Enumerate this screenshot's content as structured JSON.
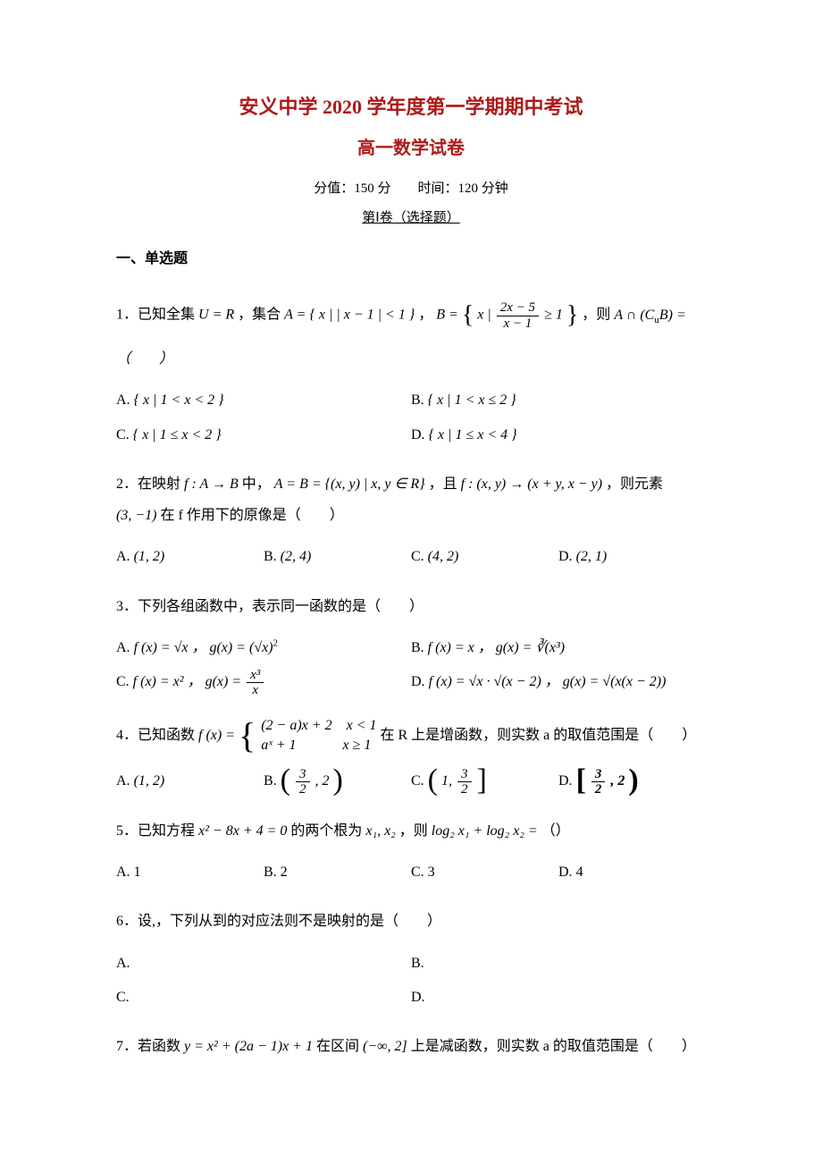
{
  "colors": {
    "accent": "#ad1a1a",
    "text": "#000000",
    "background": "#ffffff"
  },
  "title_main": "安义中学 2020 学年度第一学期期中考试",
  "title_sub": "高一数学试卷",
  "meta": "分值：150 分　　时间：120 分钟",
  "part_label": "第Ⅰ卷（选择题）",
  "section1": "一、单选题",
  "q1": {
    "stem_a": "1．已知全集 ",
    "stem_u": "U = R",
    "stem_b": " ，集合 ",
    "stem_A": "A = { x | | x − 1 | < 1 }",
    "stem_c": "， ",
    "stem_Bpre": "B = ",
    "frac_num": "2x − 5",
    "frac_den": "x − 1",
    "stem_Bpost": " ≥ 1",
    "stem_d": "，则 ",
    "stem_e": "A ∩ (C",
    "stem_sub": "u",
    "stem_f": "B) = （　　）",
    "A": "{ x | 1 < x < 2 }",
    "B": "{ x | 1 < x ≤ 2 }",
    "C": "{ x | 1 ≤ x < 2 }",
    "D": "{ x | 1 ≤ x < 4 }"
  },
  "q2": {
    "stem_a": "2．在映射 ",
    "map": "f : A → B",
    "stem_b": " 中， ",
    "AB": "A = B = {(x, y) | x, y ∈ R}",
    "stem_c": "，且 ",
    "rule": "f : (x, y) → (x + y, x − y)",
    "stem_d": " ，则元素",
    "elem": "(3, −1)",
    "stem_e": " 在 f 作用下的原像是（　　）",
    "A": "(1, 2)",
    "B": "(2, 4)",
    "C": "(4, 2)",
    "D": "(2, 1)"
  },
  "q3": {
    "stem": "3．下列各组函数中，表示同一函数的是（　　）",
    "A1": "f (x) = √x ， g(x) = (√x)",
    "A1sup": "2",
    "B1": "f (x) = x ， g(x) = ∛(x³)",
    "C1a": "f (x) = x² ， g(x) = ",
    "C1num": "x³",
    "C1den": "x",
    "D1": "f (x) = √x · √(x − 2) ， g(x) = √(x(x − 2))"
  },
  "q4": {
    "stem_a": "4．已知函数 ",
    "fx": "f (x) =",
    "row1": "(2 − a)x + 2　x < 1",
    "row2": "aˣ + 1　　　 x ≥ 1",
    "stem_b": " 在 R 上是增函数，则实数 a 的取值范围是（　　）",
    "A": "(1, 2)",
    "Bnum": "3",
    "Bden": "2",
    "Bpost": ", 2",
    "Cpre": "1, ",
    "Cnum": "3",
    "Cden": "2",
    "Dnum": "3",
    "Dden": "2",
    "Dpost": ", 2"
  },
  "q5": {
    "stem_a": "5．已知方程 ",
    "eq": "x² − 8x + 4 = 0",
    "stem_b": " 的两个根为 ",
    "roots": "x₁, x₂",
    "stem_c": " ，则 ",
    "expr": "log₂ x₁ + log₂ x₂ = ",
    "stem_d": "（）",
    "A": "1",
    "B": "2",
    "C": "3",
    "D": "4"
  },
  "q6": {
    "stem": "6．设,，下列从到的对应法则不是映射的是（　　）",
    "A": "",
    "B": "",
    "C": "",
    "D": ""
  },
  "q7": {
    "stem_a": "7．若函数 ",
    "fn": "y = x² + (2a − 1)x + 1",
    "stem_b": " 在区间 ",
    "intv": "(−∞, 2]",
    "stem_c": " 上是减函数，则实数 a 的取值范围是（　　）"
  },
  "labels": {
    "A": "A.",
    "B": "B.",
    "C": "C.",
    "D": "D."
  }
}
